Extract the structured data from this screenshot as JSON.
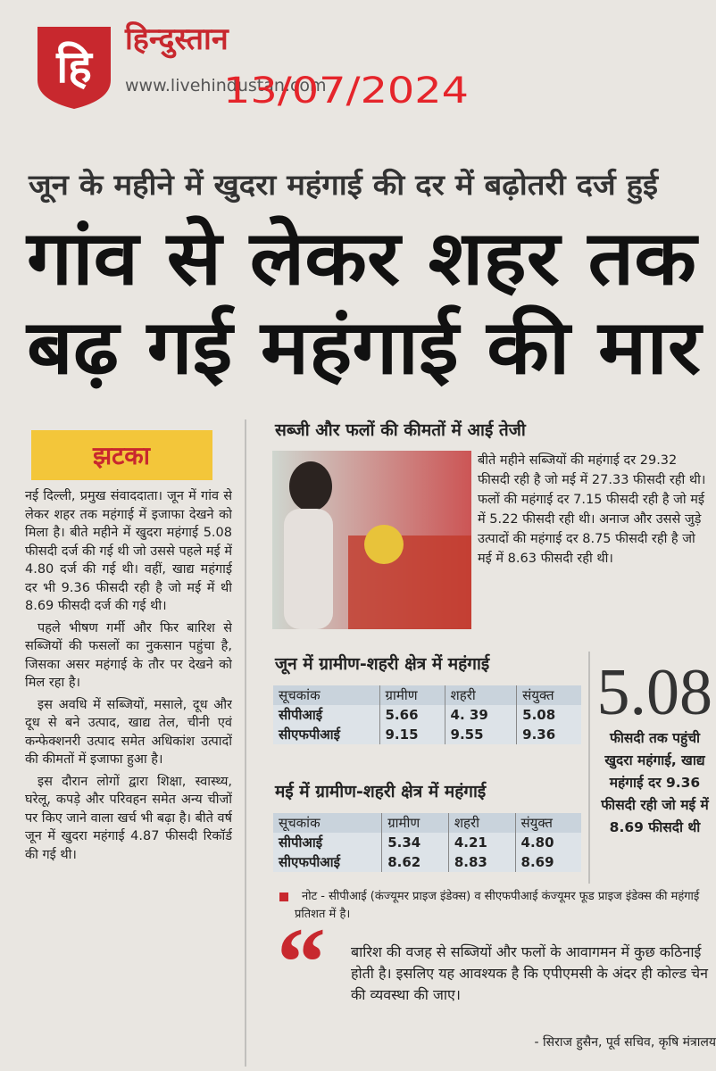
{
  "masthead": {
    "logo": "हि",
    "name": "हिन्दुस्तान",
    "url": "www.livehindustan.com",
    "date": "13/07/2024"
  },
  "kicker": "जून के महीने में खुदरा महंगाई की दर में बढ़ोतरी दर्ज हुई",
  "headline": [
    "गांव से लेकर शहर तक",
    "बढ़ गई महंगाई की मार"
  ],
  "tag": "झटका",
  "body": [
    "नई दिल्ली, प्रमुख संवाददाता। जून में गांव से लेकर शहर तक महंगाई में इजाफा देखने को मिला है। बीते महीने में खुदरा महंगाई 5.08 फीसदी दर्ज की गई थी जो उससे पहले मई में 4.80 दर्ज की गई थी। वहीं, खाद्य महंगाई दर भी 9.36 फीसदी रही है जो मई में थी 8.69 फीसदी दर्ज की गई थी।",
    "पहले भीषण गर्मी और फिर बारिश से सब्जियों की फसलों का नुकसान पहुंचा है, जिसका असर महंगाई के तौर पर देखने को मिल रहा है।",
    "इस अवधि में सब्जियों, मसाले, दूध और दूध से बने उत्पाद, खाद्य तेल, चीनी एवं कन्फेक्शनरी उत्पाद समेत अधिकांश उत्पादों की कीमतों में इजाफा हुआ है।",
    "इस दौरान लोगों द्वारा शिक्षा, स्वास्थ्य, घरेलू, कपड़े और परिवहन समेत अन्य चीजों पर किए जाने वाला खर्च भी बढ़ा है। बीते वर्ष जून में खुदरा महंगाई 4.87 फीसदी रिकॉर्ड की गई थी।"
  ],
  "photo_heading": "सब्जी और फलों की कीमतों में आई तेजी",
  "photo_text": "बीते महीने सब्जियों की महंगाई दर 29.32 फीसदी रही है जो मई में 27.33 फीसदी रही थी। फलों की महंगाई दर 7.15 फीसदी रही है जो मई में 5.22 फीसदी रही थी। अनाज और उससे जुड़े उत्पादों की महंगाई दर 8.75 फीसदी रही है जो मई में 8.63 फीसदी रही थी।",
  "tables": [
    {
      "title": "जून में ग्रामीण-शहरी क्षेत्र में महंगाई",
      "header": [
        "सूचकांक",
        "ग्रामीण",
        "शहरी",
        "संयुक्त"
      ],
      "rows": [
        [
          "सीपीआई",
          "5.66",
          "4. 39",
          "5.08"
        ],
        [
          "सीएफपीआई",
          "9.15",
          "9.55",
          "9.36"
        ]
      ]
    },
    {
      "title": "मई में ग्रामीण-शहरी क्षेत्र में महंगाई",
      "header": [
        "सूचकांक",
        "ग्रामीण",
        "शहरी",
        "संयुक्त"
      ],
      "rows": [
        [
          "सीपीआई",
          "5.34",
          "4.21",
          "4.80"
        ],
        [
          "सीएफपीआई",
          "8.62",
          "8.83",
          "8.69"
        ]
      ]
    }
  ],
  "highlight": {
    "number": "5.08",
    "text": "फीसदी तक पहुंची खुदरा महंगाई, खाद्य महंगाई दर 9.36 फीसदी रही जो मई में 8.69 फीसदी थी"
  },
  "note": "नोट - सीपीआई (कंज्यूमर प्राइज इंडेक्स) व सीएफपीआई कंज्यूमर फूड प्राइज इंडेक्स की महंगाई प्रतिशत में है।",
  "quote": {
    "text": "बारिश की वजह से सब्जियों और फलों के आवागमन में कुछ कठिनाई होती है। इसलिए यह आवश्यक है कि एपीएमसी के अंदर ही कोल्ड चेन की व्यवस्था की जाए।",
    "attribution": "- सिराज हुसैन, पूर्व सचिव, कृषि मंत्रालय"
  }
}
